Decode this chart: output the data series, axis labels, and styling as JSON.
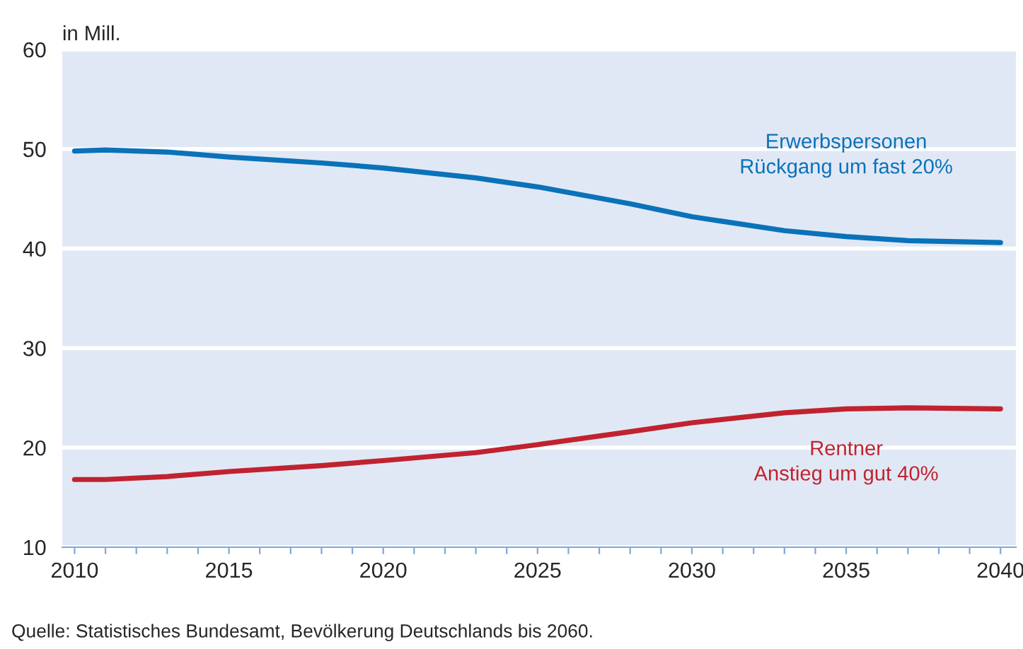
{
  "chart_data": {
    "type": "line",
    "ylabel": "in Mill.",
    "x": [
      2010,
      2011,
      2013,
      2015,
      2018,
      2020,
      2023,
      2025,
      2028,
      2030,
      2033,
      2035,
      2037,
      2040
    ],
    "series": [
      {
        "name": "Erwerbspersonen\nRückgang um fast 20%",
        "color": "#0a72b9",
        "values": [
          49.8,
          49.9,
          49.7,
          49.2,
          48.6,
          48.1,
          47.1,
          46.2,
          44.5,
          43.2,
          41.8,
          41.2,
          40.8,
          40.6
        ]
      },
      {
        "name": "Rentner\nAnstieg um gut 40%",
        "color": "#c0232f",
        "values": [
          16.8,
          16.8,
          17.1,
          17.6,
          18.2,
          18.7,
          19.5,
          20.3,
          21.6,
          22.5,
          23.5,
          23.9,
          24.0,
          23.9
        ]
      }
    ],
    "xlim": [
      2009.6,
      2040.5
    ],
    "ylim": [
      10,
      60
    ],
    "xticks": [
      2010,
      {
        "value": 2011,
        "label": null
      },
      {
        "value": 2012,
        "label": null
      },
      {
        "value": 2013,
        "label": null
      },
      {
        "value": 2014,
        "label": null
      },
      2015,
      {
        "value": 2016,
        "label": null
      },
      {
        "value": 2017,
        "label": null
      },
      {
        "value": 2018,
        "label": null
      },
      {
        "value": 2019,
        "label": null
      },
      2020,
      {
        "value": 2021,
        "label": null
      },
      {
        "value": 2022,
        "label": null
      },
      {
        "value": 2023,
        "label": null
      },
      {
        "value": 2024,
        "label": null
      },
      2025,
      {
        "value": 2026,
        "label": null
      },
      {
        "value": 2027,
        "label": null
      },
      {
        "value": 2028,
        "label": null
      },
      {
        "value": 2029,
        "label": null
      },
      2030,
      {
        "value": 2031,
        "label": null
      },
      {
        "value": 2032,
        "label": null
      },
      {
        "value": 2033,
        "label": null
      },
      {
        "value": 2034,
        "label": null
      },
      2035,
      {
        "value": 2036,
        "label": null
      },
      {
        "value": 2037,
        "label": null
      },
      {
        "value": 2038,
        "label": null
      },
      {
        "value": 2039,
        "label": null
      },
      2040
    ],
    "yticks": [
      10,
      20,
      30,
      40,
      50,
      60
    ],
    "grid": "y",
    "legend": false,
    "marker": "none",
    "line_style": "solid",
    "annotations": [
      "Quelle: Statistisches Bundesamt, Bevölkerung Deutschlands bis 2060."
    ]
  }
}
